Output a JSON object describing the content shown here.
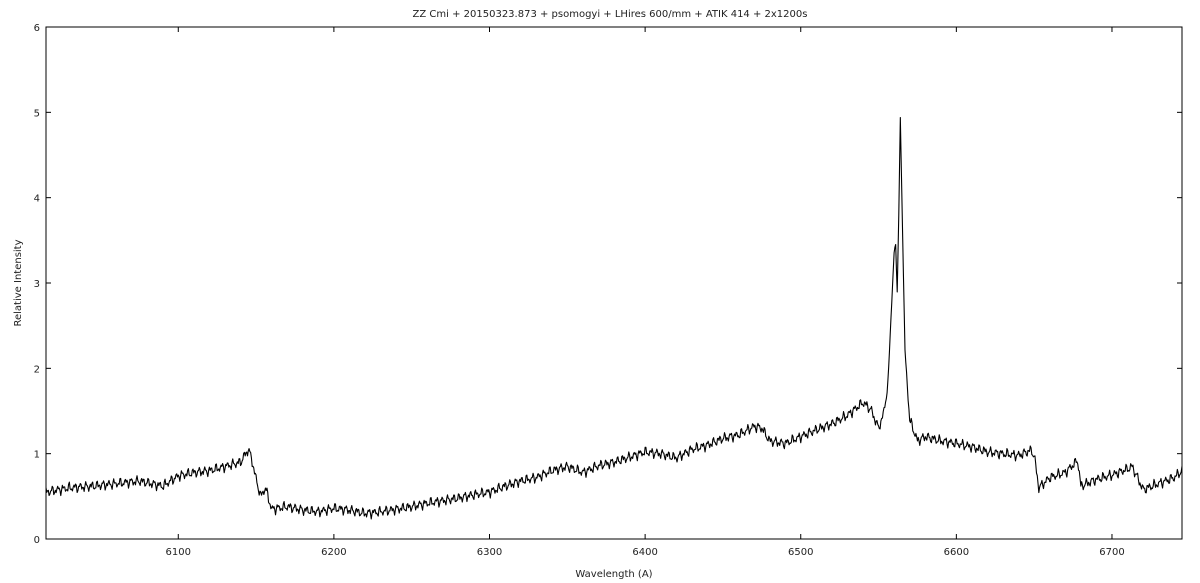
{
  "chart_data": {
    "type": "line",
    "title": "ZZ Cmi + 20150323.873 + psomogyi + LHires 600/mm + ATIK 414 + 2x1200s",
    "xlabel": "Wavelength (A)",
    "ylabel": "Relative Intensity",
    "xlim": [
      6015,
      6745
    ],
    "ylim": [
      0,
      6
    ],
    "xticks": [
      6100,
      6200,
      6300,
      6400,
      6500,
      6600,
      6700
    ],
    "yticks": [
      0,
      1,
      2,
      3,
      4,
      5,
      6
    ],
    "grid": false,
    "legend": "none",
    "line_color": "#000000",
    "series": [
      {
        "x": [
          6015,
          6030,
          6045,
          6060,
          6075,
          6090,
          6100,
          6110,
          6120,
          6130,
          6140,
          6145,
          6147,
          6150,
          6153,
          6156,
          6160,
          6170,
          6180,
          6190,
          6200,
          6210,
          6220,
          6230,
          6240,
          6250,
          6260,
          6270,
          6280,
          6290,
          6300,
          6310,
          6320,
          6330,
          6340,
          6350,
          6360,
          6370,
          6380,
          6390,
          6400,
          6410,
          6420,
          6430,
          6440,
          6450,
          6460,
          6470,
          6475,
          6480,
          6490,
          6500,
          6510,
          6520,
          6530,
          6540,
          6545,
          6550,
          6553,
          6556,
          6558,
          6560,
          6561,
          6562,
          6563,
          6564,
          6565,
          6567,
          6570,
          6575,
          6580,
          6590,
          6600,
          6610,
          6620,
          6630,
          6640,
          6648,
          6650,
          6653,
          6660,
          6670,
          6678,
          6680,
          6690,
          6700,
          6710,
          6713,
          6720,
          6730,
          6740,
          6745
        ],
        "y": [
          0.55,
          0.6,
          0.62,
          0.65,
          0.68,
          0.62,
          0.74,
          0.78,
          0.8,
          0.85,
          0.9,
          1.05,
          0.95,
          0.7,
          0.5,
          0.6,
          0.35,
          0.38,
          0.34,
          0.32,
          0.36,
          0.34,
          0.3,
          0.32,
          0.35,
          0.38,
          0.42,
          0.45,
          0.48,
          0.52,
          0.55,
          0.62,
          0.68,
          0.72,
          0.8,
          0.85,
          0.78,
          0.86,
          0.9,
          0.96,
          1.02,
          1.0,
          0.95,
          1.05,
          1.1,
          1.18,
          1.22,
          1.32,
          1.3,
          1.15,
          1.12,
          1.2,
          1.28,
          1.35,
          1.45,
          1.6,
          1.52,
          1.3,
          1.45,
          1.8,
          2.6,
          3.35,
          3.45,
          2.9,
          3.8,
          4.93,
          4.0,
          2.2,
          1.4,
          1.15,
          1.2,
          1.15,
          1.12,
          1.08,
          1.02,
          1.0,
          0.98,
          1.04,
          0.98,
          0.6,
          0.72,
          0.78,
          0.92,
          0.62,
          0.7,
          0.75,
          0.82,
          0.85,
          0.58,
          0.65,
          0.72,
          0.8
        ]
      }
    ]
  }
}
